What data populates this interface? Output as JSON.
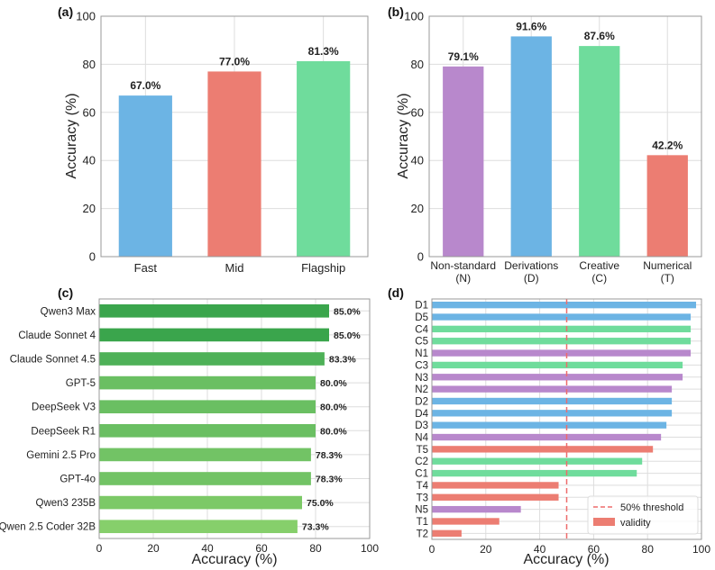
{
  "colors": {
    "blue": "#6cb4e4",
    "red": "#ec7d72",
    "green": "#6fdc9c",
    "purple": "#b888cc",
    "grid": "#dddddd",
    "axis": "#999999"
  },
  "chart_data": [
    {
      "panel": "(a)",
      "type": "bar",
      "categories": [
        "Fast",
        "Mid",
        "Flagship"
      ],
      "values": [
        67.0,
        77.0,
        81.3
      ],
      "value_labels": [
        "67.0%",
        "77.0%",
        "81.3%"
      ],
      "colors": [
        "#6cb4e4",
        "#ec7d72",
        "#6fdc9c"
      ],
      "ylabel": "Accuracy (%)",
      "ylim": [
        0,
        100
      ],
      "yticks": [
        0,
        20,
        40,
        60,
        80,
        100
      ],
      "grid": true
    },
    {
      "panel": "(b)",
      "type": "bar",
      "categories": [
        [
          "Non-standard",
          "(N)"
        ],
        [
          "Derivations",
          "(D)"
        ],
        [
          "Creative",
          "(C)"
        ],
        [
          "Numerical",
          "(T)"
        ]
      ],
      "values": [
        79.1,
        91.6,
        87.6,
        42.2
      ],
      "value_labels": [
        "79.1%",
        "91.6%",
        "87.6%",
        "42.2%"
      ],
      "colors": [
        "#b888cc",
        "#6cb4e4",
        "#6fdc9c",
        "#ec7d72"
      ],
      "ylabel": "Accuracy (%)",
      "ylim": [
        0,
        100
      ],
      "yticks": [
        0,
        20,
        40,
        60,
        80,
        100
      ],
      "grid": true
    },
    {
      "panel": "(c)",
      "type": "bar",
      "orientation": "horizontal",
      "categories": [
        "Qwen3 Max",
        "Claude Sonnet 4",
        "Claude Sonnet 4.5",
        "GPT-5",
        "DeepSeek V3",
        "DeepSeek R1",
        "Gemini 2.5 Pro",
        "GPT-4o",
        "Qwen3 235B",
        "Qwen 2.5 Coder 32B"
      ],
      "values": [
        85.0,
        85.0,
        83.3,
        80.0,
        80.0,
        80.0,
        78.3,
        78.3,
        75.0,
        73.3
      ],
      "value_labels": [
        "85.0%",
        "85.0%",
        "83.3%",
        "80.0%",
        "80.0%",
        "80.0%",
        "78.3%",
        "78.3%",
        "75.0%",
        "73.3%"
      ],
      "colors": [
        "#3aa54c",
        "#3aa54c",
        "#4eb158",
        "#6abf62",
        "#6abf62",
        "#6abf62",
        "#72c365",
        "#72c365",
        "#7cc967",
        "#86cf6b"
      ],
      "xlabel": "Accuracy (%)",
      "xlim": [
        0,
        100
      ],
      "xticks": [
        0,
        20,
        40,
        60,
        80,
        100
      ],
      "grid": true
    },
    {
      "panel": "(d)",
      "type": "bar",
      "orientation": "horizontal",
      "categories": [
        "D1",
        "D5",
        "C4",
        "C5",
        "N1",
        "C3",
        "N3",
        "N2",
        "D2",
        "D4",
        "D3",
        "N4",
        "T5",
        "C2",
        "C1",
        "T4",
        "T3",
        "N5",
        "T1",
        "T2"
      ],
      "values": [
        98,
        96,
        96,
        96,
        96,
        93,
        93,
        89,
        89,
        89,
        87,
        85,
        82,
        78,
        76,
        47,
        47,
        33,
        25,
        11
      ],
      "colors": [
        "#6cb4e4",
        "#6cb4e4",
        "#6fdc9c",
        "#6fdc9c",
        "#b888cc",
        "#6fdc9c",
        "#b888cc",
        "#b888cc",
        "#6cb4e4",
        "#6cb4e4",
        "#6cb4e4",
        "#b888cc",
        "#ec7d72",
        "#6fdc9c",
        "#6fdc9c",
        "#ec7d72",
        "#ec7d72",
        "#b888cc",
        "#ec7d72",
        "#ec7d72"
      ],
      "xlabel": "Accuracy (%)",
      "xlim": [
        0,
        100
      ],
      "xticks": [
        0,
        20,
        40,
        60,
        80,
        100
      ],
      "threshold": 50,
      "legend": [
        "50% threshold",
        "validity"
      ],
      "legend_position": "lower-right",
      "grid": true
    }
  ]
}
